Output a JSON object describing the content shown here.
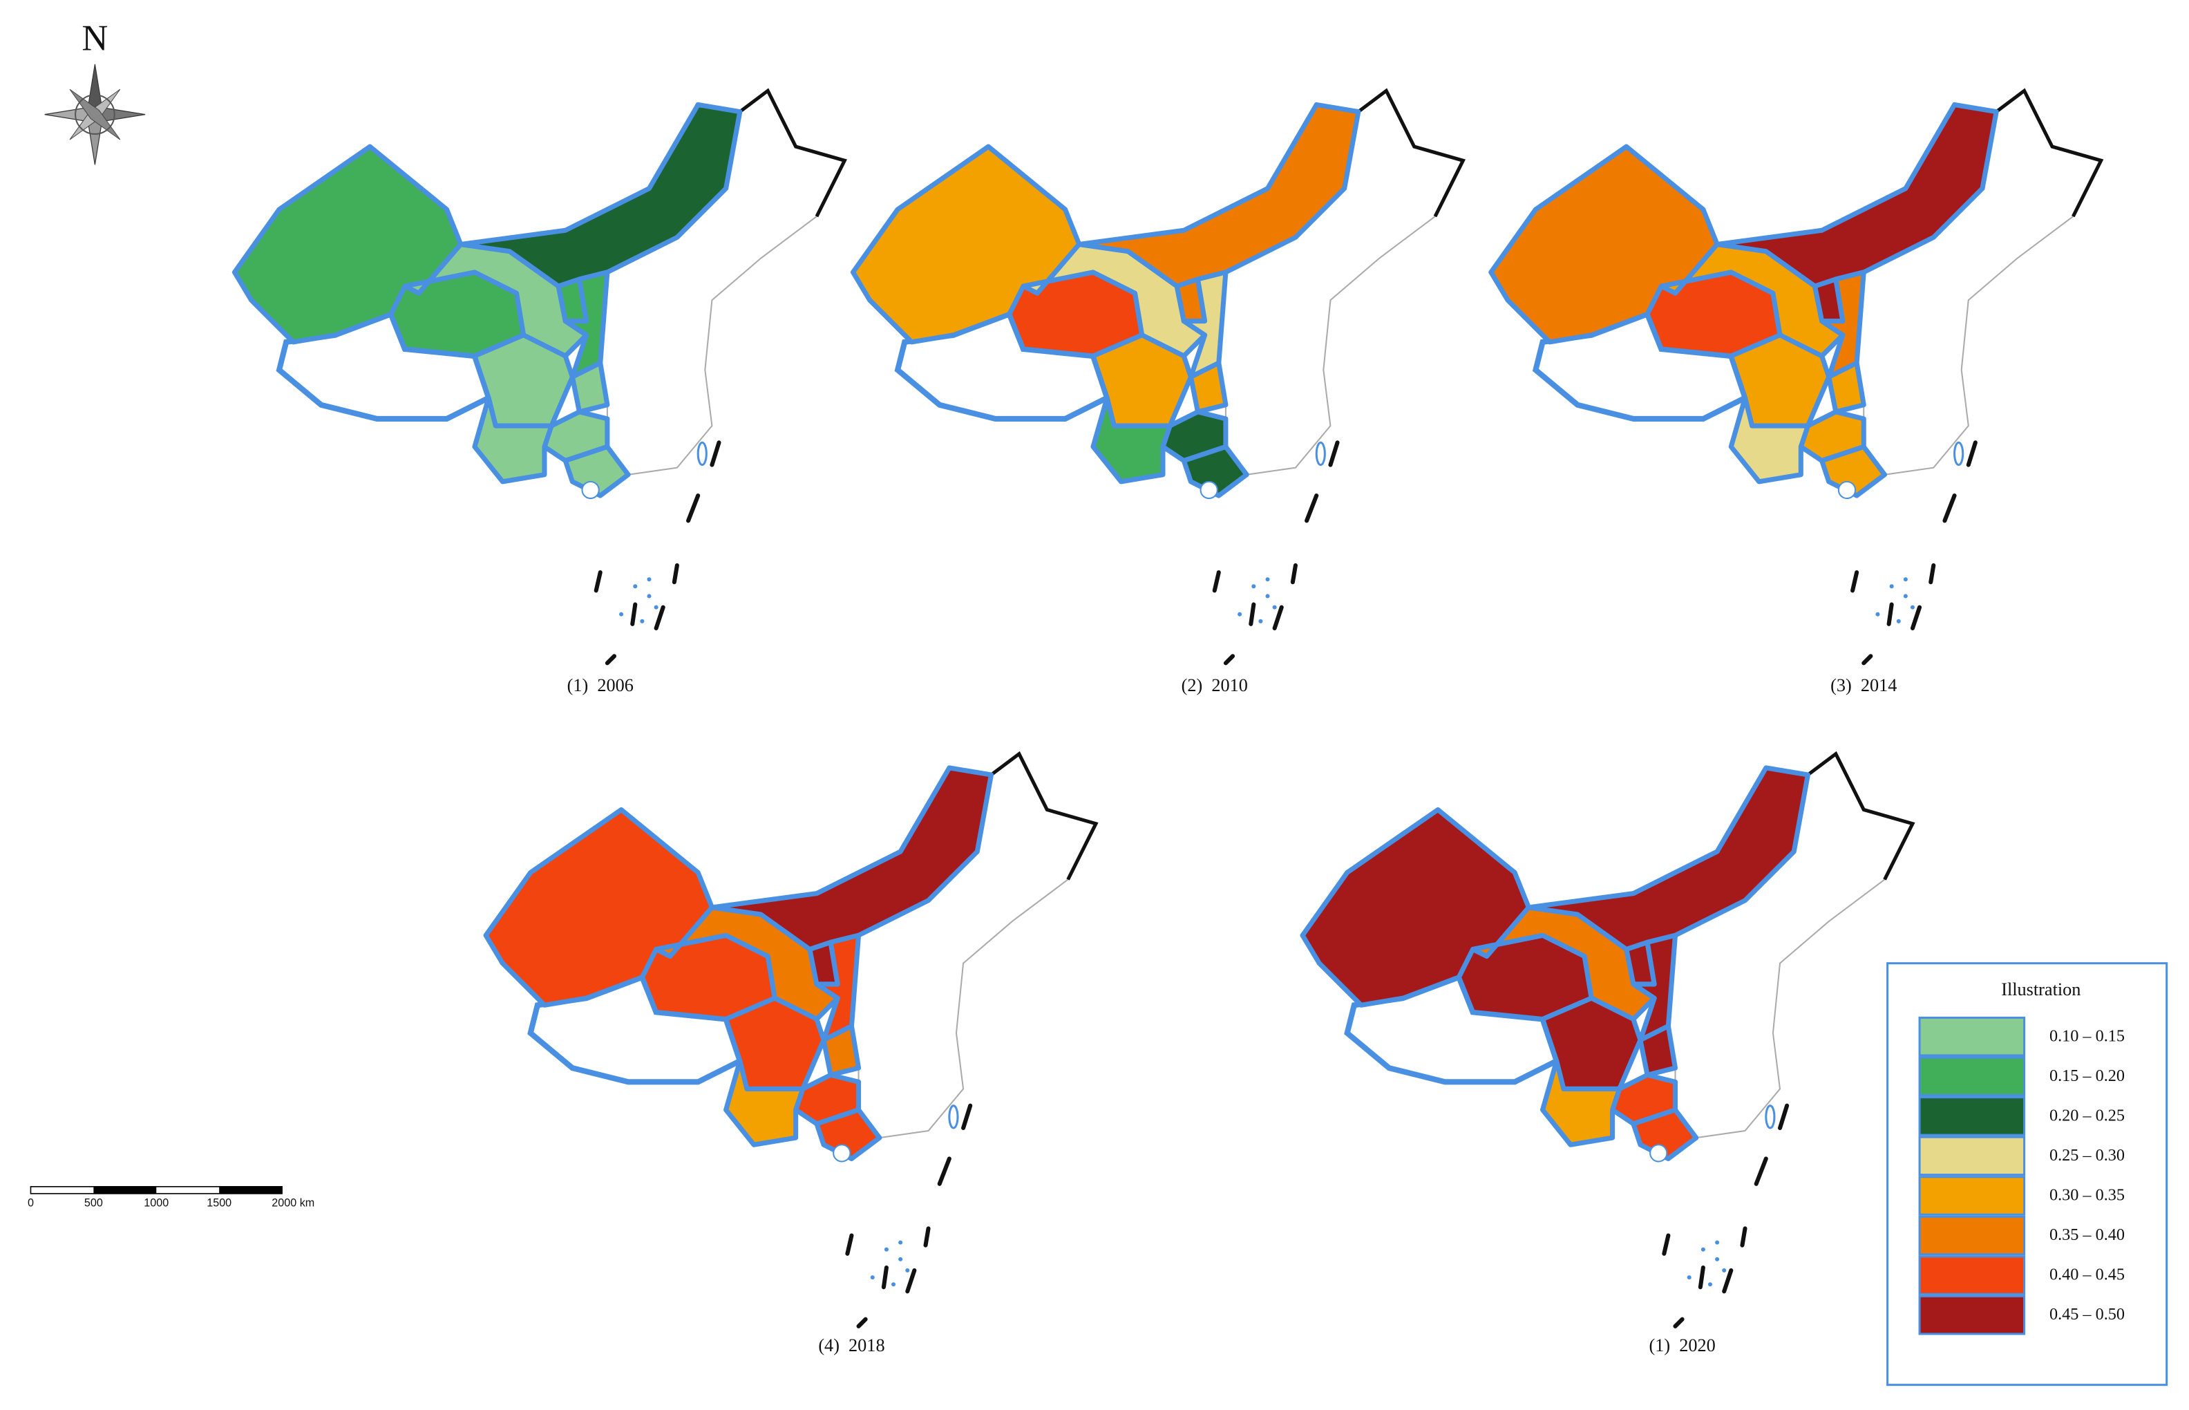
{
  "compass": {
    "label": "N"
  },
  "scale_bar": {
    "labels": [
      "0",
      "500",
      "1000",
      "1500",
      "2000 km"
    ]
  },
  "maps": [
    {
      "caption": "(1)  2006",
      "region_colors": [
        "#41ae5a",
        "#41ae5a",
        "#88cc91",
        "#1b6330",
        "#41ae5a",
        "#41ae5a",
        "#88cc91",
        "#88cc91",
        "#88cc91",
        "#88cc91",
        "#88cc91"
      ]
    },
    {
      "caption": "(2)  2010",
      "region_colors": [
        "#f2a100",
        "#f2440f",
        "#e6d98a",
        "#ef7a00",
        "#ef7a00",
        "#e6d98a",
        "#f2a100",
        "#f2a100",
        "#1b6330",
        "#41ae5a",
        "#1b6330"
      ]
    },
    {
      "caption": "(3)  2014",
      "region_colors": [
        "#ef7a00",
        "#f2440f",
        "#f2a100",
        "#a4191a",
        "#a4191a",
        "#ef7a00",
        "#f2a100",
        "#f2a100",
        "#f2a100",
        "#e6d98a",
        "#f2a100"
      ]
    },
    {
      "caption": "(4)  2018",
      "region_colors": [
        "#f2440f",
        "#f2440f",
        "#ef7a00",
        "#a4191a",
        "#a4191a",
        "#f2440f",
        "#f2440f",
        "#ef7a00",
        "#f2440f",
        "#f2a100",
        "#f2440f"
      ]
    },
    {
      "caption": "(1)  2020",
      "region_colors": [
        "#a4191a",
        "#a4191a",
        "#ef7a00",
        "#a4191a",
        "#a4191a",
        "#a4191a",
        "#a4191a",
        "#a4191a",
        "#f2440f",
        "#f2a100",
        "#f2440f"
      ]
    }
  ],
  "legend": {
    "title": "Illustration",
    "items": [
      {
        "label": "0.10 – 0.15",
        "color": "#88cc91"
      },
      {
        "label": "0.15 – 0.20",
        "color": "#41ae5a"
      },
      {
        "label": "0.20 – 0.25",
        "color": "#1b6330"
      },
      {
        "label": "0.25 – 0.30",
        "color": "#e6d98a"
      },
      {
        "label": "0.30 – 0.35",
        "color": "#f2a100"
      },
      {
        "label": "0.35 – 0.40",
        "color": "#ef7a00"
      },
      {
        "label": "0.40 – 0.45",
        "color": "#f2440f"
      },
      {
        "label": "0.45 – 0.50",
        "color": "#a4191a"
      }
    ]
  }
}
